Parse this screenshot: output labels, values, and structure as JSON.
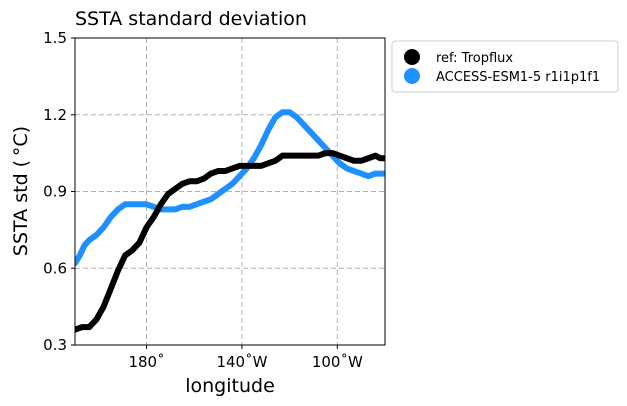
{
  "chart_data": {
    "type": "line",
    "title": "SSTA standard deviation",
    "xlabel": "longitude",
    "ylabel": "SSTA std ($^\\circ$C)",
    "ylabel_display": "SSTA std ( °C)",
    "xlim": [
      150,
      280
    ],
    "ylim": [
      0.3,
      1.5
    ],
    "yticks": [
      0.3,
      0.6,
      0.9,
      1.2,
      1.5
    ],
    "ytick_labels": [
      "0.3",
      "0.6",
      "0.9",
      "1.2",
      "1.5"
    ],
    "xticks": [
      180,
      220,
      260
    ],
    "xtick_labels": [
      "180˚",
      "140˚W",
      "100˚W"
    ],
    "grid": true,
    "legend_position": "outside-right-top",
    "series": [
      {
        "name": "ref: Tropflux",
        "color": "#000000",
        "x": [
          150,
          153,
          156,
          159,
          162,
          165,
          168,
          171,
          174,
          177,
          180,
          183,
          186,
          189,
          192,
          195,
          198,
          201,
          204,
          207,
          210,
          213,
          216,
          219,
          222,
          225,
          228,
          231,
          234,
          237,
          240,
          243,
          246,
          249,
          252,
          255,
          258,
          261,
          264,
          267,
          270,
          273,
          276,
          278,
          280
        ],
        "y": [
          0.36,
          0.37,
          0.37,
          0.4,
          0.45,
          0.52,
          0.59,
          0.65,
          0.67,
          0.7,
          0.76,
          0.8,
          0.85,
          0.89,
          0.91,
          0.93,
          0.94,
          0.94,
          0.95,
          0.97,
          0.98,
          0.98,
          0.99,
          1.0,
          1.0,
          1.0,
          1.0,
          1.01,
          1.02,
          1.04,
          1.04,
          1.04,
          1.04,
          1.04,
          1.04,
          1.05,
          1.05,
          1.04,
          1.03,
          1.02,
          1.02,
          1.03,
          1.04,
          1.03,
          1.03
        ]
      },
      {
        "name": "ACCESS-ESM1-5 r1i1p1f1",
        "color": "#1f90ff",
        "x": [
          150,
          152,
          154,
          156,
          159,
          162,
          165,
          168,
          171,
          174,
          177,
          180,
          183,
          186,
          189,
          192,
          195,
          198,
          201,
          204,
          207,
          210,
          213,
          216,
          219,
          222,
          225,
          228,
          231,
          234,
          237,
          240,
          243,
          246,
          249,
          252,
          255,
          258,
          261,
          264,
          267,
          270,
          273,
          276,
          278,
          280
        ],
        "y": [
          0.62,
          0.65,
          0.69,
          0.71,
          0.73,
          0.76,
          0.8,
          0.83,
          0.85,
          0.85,
          0.85,
          0.85,
          0.84,
          0.83,
          0.83,
          0.83,
          0.84,
          0.84,
          0.85,
          0.86,
          0.87,
          0.89,
          0.91,
          0.93,
          0.96,
          0.99,
          1.03,
          1.08,
          1.14,
          1.19,
          1.21,
          1.21,
          1.19,
          1.16,
          1.13,
          1.1,
          1.07,
          1.04,
          1.01,
          0.99,
          0.98,
          0.97,
          0.96,
          0.97,
          0.97,
          0.97
        ]
      }
    ]
  }
}
